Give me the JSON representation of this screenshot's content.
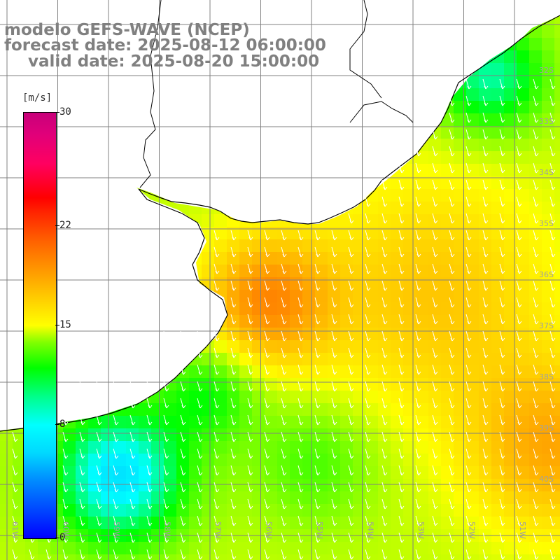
{
  "title": {
    "line1": "modelo GEFS-WAVE (NCEP)",
    "line2": "forecast date: 2025-08-12 06:00:00",
    "line3": "valid date: 2025-08-20 15:00:00"
  },
  "legend": {
    "unit": "[m/s]",
    "ticks": [
      "30",
      "22",
      "15",
      "8",
      "0"
    ],
    "tick_values": [
      30,
      22,
      15,
      8,
      0
    ],
    "min": 0,
    "max": 30
  },
  "map": {
    "lat_labels": [
      "32S",
      "33S",
      "34S",
      "35S",
      "36S",
      "37S",
      "38S",
      "39S",
      "40S"
    ],
    "lon_labels": [
      "61W",
      "60W",
      "59W",
      "58W",
      "57W",
      "56W",
      "55W",
      "54W",
      "53W",
      "52W",
      "51W"
    ],
    "colors": {
      "land": "#ffffff",
      "grid": "#808080",
      "coast": "#000000",
      "arrow": "#ffffff"
    },
    "wind_direction": "toward south-southeast"
  }
}
